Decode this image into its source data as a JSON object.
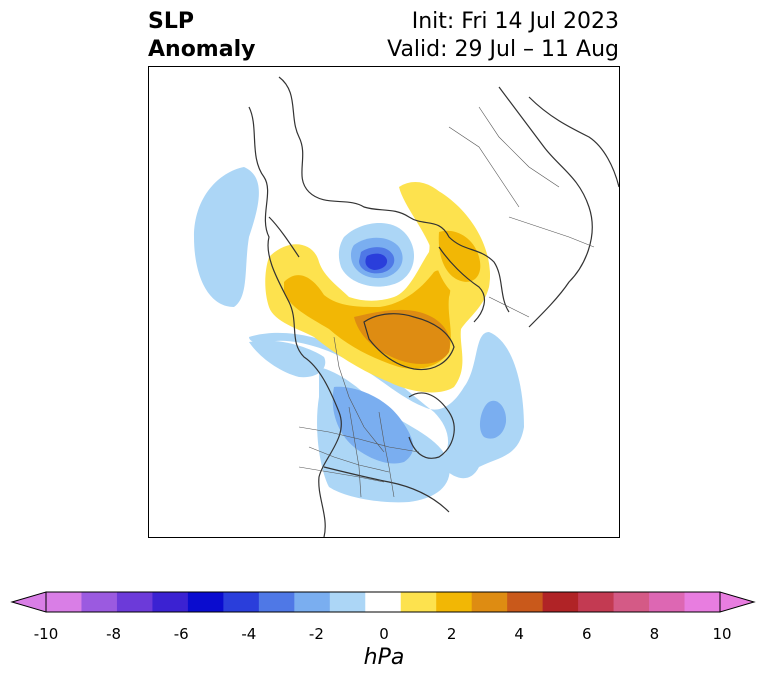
{
  "title": {
    "left_line1": "SLP",
    "left_line2": "Anomaly",
    "right_line1": "Init: Fri 14 Jul 2023",
    "right_line2": "Valid: 29 Jul – 11 Aug"
  },
  "colorbar": {
    "unit": "hPa",
    "ticks": [
      "-10",
      "-8",
      "-6",
      "-4",
      "-2",
      "0",
      "2",
      "4",
      "6",
      "8",
      "10"
    ],
    "colors": [
      "#d97ee6",
      "#9b5ae0",
      "#6c3ad9",
      "#3b22d2",
      "#0a0ccf",
      "#2a3edb",
      "#4f78e6",
      "#7aaef0",
      "#acd6f6",
      "#ffffff",
      "#fde24e",
      "#f2b705",
      "#de8c12",
      "#c9591b",
      "#b02326",
      "#c33a52",
      "#d45a86",
      "#dd67b3",
      "#e87de0"
    ],
    "left_arrow_color": "#d97ee6",
    "right_arrow_color": "#e87de0"
  },
  "map": {
    "projection": "north polar stereographic",
    "variable": "sea level pressure anomaly",
    "features": [
      {
        "name": "strong negative anomaly over central Arctic",
        "color": "#2a3edb"
      },
      {
        "name": "positive anomaly over Greenland",
        "color": "#de8c12"
      },
      {
        "name": "positive anomaly over northern Europe",
        "color": "#fde24e"
      },
      {
        "name": "negative anomaly over North America",
        "color": "#7aaef0"
      },
      {
        "name": "negative anomaly over North Atlantic",
        "color": "#7aaef0"
      }
    ]
  }
}
